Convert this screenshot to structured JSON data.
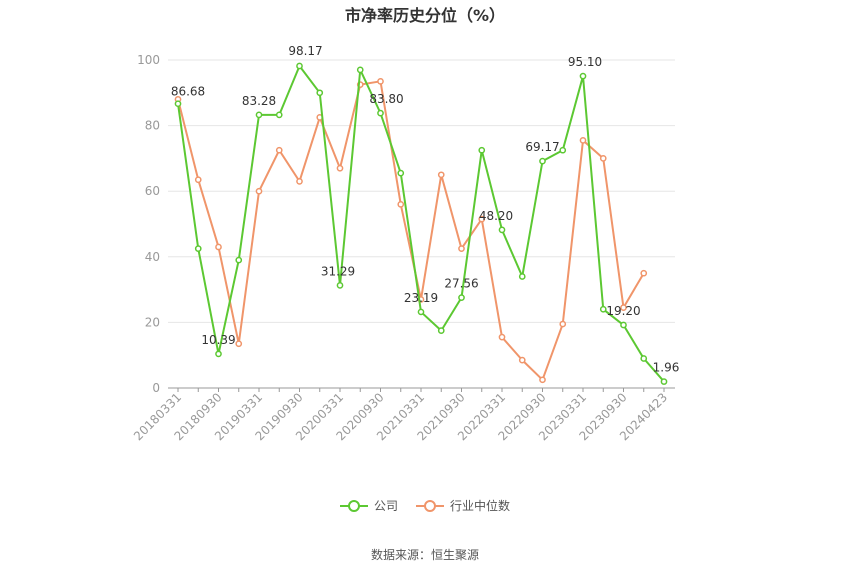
{
  "title": "市净率历史分位（%）",
  "source": "数据来源：恒生聚源",
  "colors": {
    "company": "#5cc832",
    "industry": "#f0956a",
    "grid": "#e6e6e6",
    "axis": "#999999",
    "label": "#333333"
  },
  "chart_data": {
    "type": "line",
    "title": "市净率历史分位（%）",
    "xlabel": "",
    "ylabel": "",
    "ylim": [
      0,
      100
    ],
    "yticks": [
      0,
      20,
      40,
      60,
      80,
      100
    ],
    "grid": true,
    "legend_position": "bottom",
    "x_tick_labels": [
      "20180331",
      "20180930",
      "20190331",
      "20190930",
      "20200331",
      "20200930",
      "20210331",
      "20210930",
      "20220331",
      "20220930",
      "20230331",
      "20230930",
      "20240423"
    ],
    "x": [
      "20180331",
      "20180630",
      "20180930",
      "20181231",
      "20190331",
      "20190630",
      "20190930",
      "20191231",
      "20200331",
      "20200630",
      "20200930",
      "20201231",
      "20210331",
      "20210630",
      "20210930",
      "20211231",
      "20220331",
      "20220630",
      "20220930",
      "20221231",
      "20230331",
      "20230630",
      "20230930",
      "20231231",
      "20240423"
    ],
    "series": [
      {
        "name": "公司",
        "values": [
          86.68,
          42.5,
          10.39,
          39,
          83.28,
          83.28,
          98.17,
          90,
          31.29,
          97,
          83.8,
          65.5,
          23.19,
          17.5,
          27.56,
          72.5,
          48.2,
          34,
          69.17,
          72.5,
          95.1,
          24,
          19.2,
          9,
          1.96
        ],
        "point_labels": [
          {
            "index": 0,
            "text": "86.68"
          },
          {
            "index": 2,
            "text": "10.39"
          },
          {
            "index": 4,
            "text": "83.28"
          },
          {
            "index": 6,
            "text": "98.17"
          },
          {
            "index": 8,
            "text": "31.29"
          },
          {
            "index": 10,
            "text": "83.80"
          },
          {
            "index": 12,
            "text": "23.19"
          },
          {
            "index": 14,
            "text": "27.56"
          },
          {
            "index": 16,
            "text": "48.20"
          },
          {
            "index": 18,
            "text": "69.17"
          },
          {
            "index": 20,
            "text": "95.10"
          },
          {
            "index": 22,
            "text": "19.20"
          },
          {
            "index": 24,
            "text": "1.96"
          }
        ]
      },
      {
        "name": "行业中位数",
        "values": [
          88,
          63.5,
          43,
          13.5,
          60,
          72.5,
          63,
          82.5,
          67,
          92.5,
          93.5,
          56,
          27,
          65,
          42.5,
          51.5,
          15.5,
          8.5,
          2.5,
          19.5,
          75.5,
          70,
          24.5,
          35,
          null
        ]
      }
    ]
  }
}
